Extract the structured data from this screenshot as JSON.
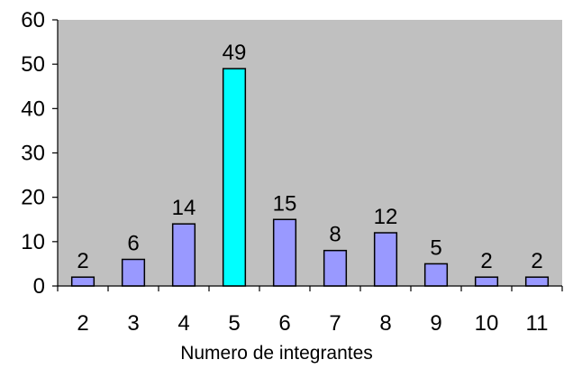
{
  "chart_data": {
    "type": "bar",
    "categories": [
      "2",
      "3",
      "4",
      "5",
      "6",
      "7",
      "8",
      "9",
      "10",
      "11"
    ],
    "values": [
      2,
      6,
      14,
      49,
      15,
      8,
      12,
      5,
      2,
      2
    ],
    "data_labels": [
      "2",
      "6",
      "14",
      "49",
      "15",
      "8",
      "12",
      "5",
      "2",
      "2"
    ],
    "title": "",
    "xlabel": "Numero de integrantes",
    "ylabel": "",
    "ylim": [
      0,
      60
    ],
    "yticks": [
      "0",
      "10",
      "20",
      "30",
      "40",
      "50",
      "60"
    ],
    "grid": false,
    "legend": "none",
    "highlight_index": 3,
    "colors": {
      "plot_background": "#c0c0c0",
      "bar": "#9999ff",
      "bar_highlight": "#00ffff",
      "bar_outline": "#000000"
    }
  }
}
